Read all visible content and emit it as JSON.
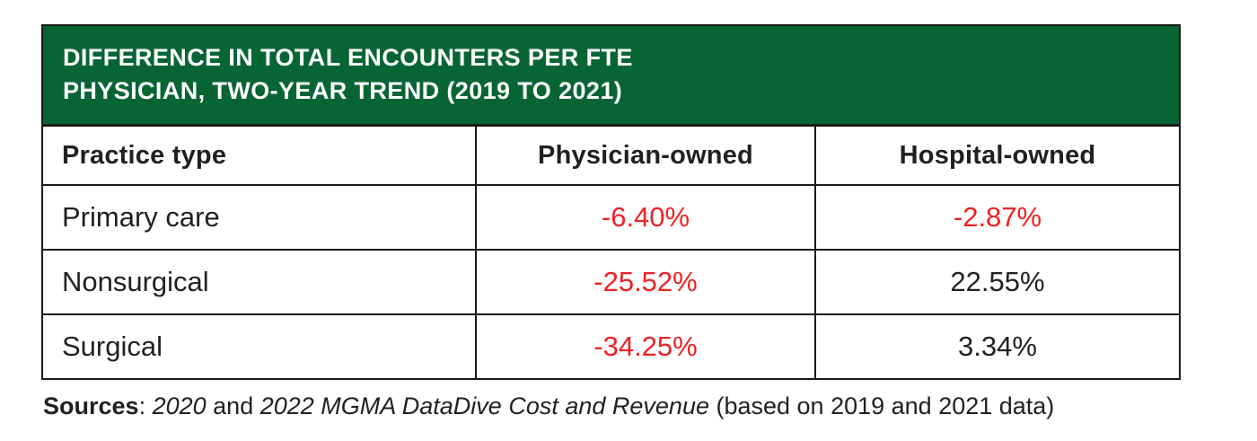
{
  "colors": {
    "header_green": "#076534",
    "title_text": "#ffffff",
    "negative_red": "#ed2124",
    "text_black": "#231f20",
    "border_black": "#1a1a1a"
  },
  "table": {
    "title_line1": "DIFFERENCE IN TOTAL ENCOUNTERS PER FTE",
    "title_line2": "PHYSICIAN, TWO-YEAR TREND (2019 TO 2021)",
    "columns": [
      "Practice type",
      "Physician-owned",
      "Hospital-owned"
    ],
    "rows": [
      {
        "label": "Primary care",
        "values": [
          {
            "text": "-6.40%",
            "color": "#ed2124"
          },
          {
            "text": "-2.87%",
            "color": "#ed2124"
          }
        ]
      },
      {
        "label": "Nonsurgical",
        "values": [
          {
            "text": "-25.52%",
            "color": "#ed2124"
          },
          {
            "text": "22.55%",
            "color": "#231f20"
          }
        ]
      },
      {
        "label": "Surgical",
        "values": [
          {
            "text": "-34.25%",
            "color": "#ed2124"
          },
          {
            "text": "3.34%",
            "color": "#231f20"
          }
        ]
      }
    ]
  },
  "footer": {
    "label_bold": "Sources",
    "separator": ": ",
    "italic_part1": "2020",
    "plain_part1": " and ",
    "italic_part2": "2022 MGMA DataDive Cost and Revenue",
    "plain_part2": " (based on 2019 and 2021 data)"
  },
  "chart_data": {
    "type": "table",
    "title": "DIFFERENCE IN TOTAL ENCOUNTERS PER FTE PHYSICIAN, TWO-YEAR TREND (2019 TO 2021)",
    "columns": [
      "Practice type",
      "Physician-owned",
      "Hospital-owned"
    ],
    "rows": [
      [
        "Primary care",
        "-6.40%",
        "-2.87%"
      ],
      [
        "Nonsurgical",
        "-25.52%",
        "22.55%"
      ],
      [
        "Surgical",
        "-34.25%",
        "3.34%"
      ]
    ],
    "series": [
      {
        "name": "Physician-owned",
        "values": [
          -6.4,
          -25.52,
          -34.25
        ]
      },
      {
        "name": "Hospital-owned",
        "values": [
          -2.87,
          22.55,
          3.34
        ]
      }
    ],
    "categories": [
      "Primary care",
      "Nonsurgical",
      "Surgical"
    ],
    "units": "percent change",
    "negative_values_shown_in_red": true,
    "source_note": "Sources: 2020 and 2022 MGMA DataDive Cost and Revenue (based on 2019 and 2021 data)"
  }
}
